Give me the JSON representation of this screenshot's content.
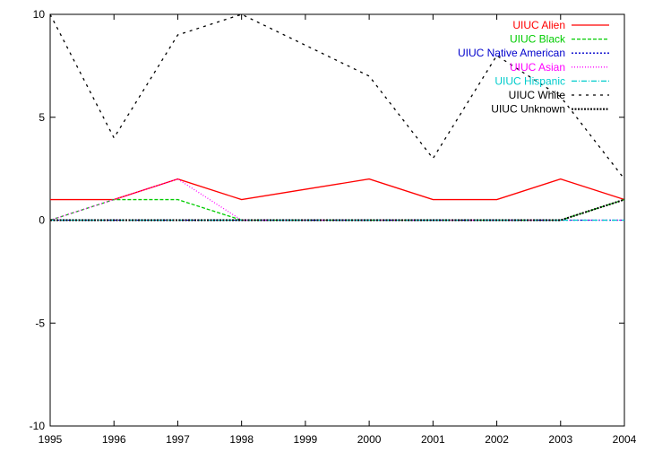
{
  "chart_data": {
    "type": "line",
    "title": "",
    "xlabel": "",
    "ylabel": "",
    "xlim": [
      1995,
      2004
    ],
    "ylim": [
      -10,
      10
    ],
    "x": [
      1995,
      1996,
      1997,
      1998,
      1999,
      2000,
      2001,
      2002,
      2003,
      2004
    ],
    "xticks": [
      "1995",
      "1996",
      "1997",
      "1998",
      "1999",
      "2000",
      "2001",
      "2002",
      "2003",
      "2004"
    ],
    "yticks": [
      {
        "value": -10,
        "label": "-10"
      },
      {
        "value": -5,
        "label": "-5"
      },
      {
        "value": 0,
        "label": "0"
      },
      {
        "value": 5,
        "label": "5"
      },
      {
        "value": 10,
        "label": "10"
      }
    ],
    "grid": false,
    "legend_position": "top-right",
    "series": [
      {
        "name": "UIUC Alien",
        "color": "#ff0000",
        "dash": "solid",
        "values": [
          1,
          1,
          2,
          1,
          1.5,
          2,
          1,
          1,
          2,
          1
        ]
      },
      {
        "name": "UIUC Black",
        "color": "#00cc00",
        "dash": "dashed",
        "values": [
          0,
          1,
          1,
          0,
          0,
          0,
          0,
          0,
          0,
          1
        ]
      },
      {
        "name": "UIUC Native American",
        "color": "#0000cc",
        "dash": "dotted",
        "values": [
          0,
          0,
          0,
          0,
          0,
          0,
          0,
          0,
          0,
          0
        ]
      },
      {
        "name": "UIUC Asian",
        "color": "#ff00ff",
        "dash": "fine-dotted",
        "values": [
          0,
          1,
          2,
          0,
          0,
          0,
          0,
          0,
          0,
          0
        ]
      },
      {
        "name": "UIUC Hispanic",
        "color": "#00cccc",
        "dash": "dash-dot",
        "values": [
          0,
          0,
          0,
          0,
          0,
          0,
          0,
          0,
          0,
          0
        ]
      },
      {
        "name": "UIUC White",
        "color": "#000000",
        "dash": "sparse-dashed",
        "values": [
          10,
          4,
          9,
          10,
          8.5,
          7,
          3,
          8,
          6,
          2
        ]
      },
      {
        "name": "UIUC Unknown",
        "color": "#000000",
        "dash": "heavy-dotted",
        "values": [
          0,
          0,
          0,
          0,
          0,
          0,
          0,
          0,
          0,
          1
        ]
      }
    ]
  }
}
